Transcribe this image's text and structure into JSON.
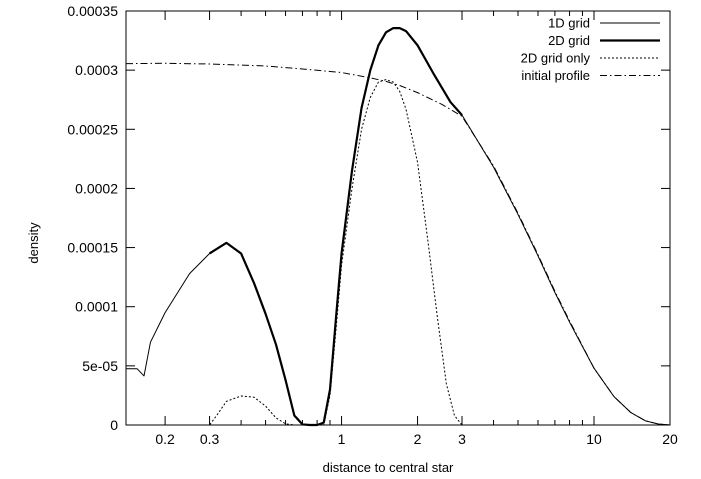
{
  "chart_data": {
    "type": "line",
    "xlabel": "distance to central star",
    "ylabel": "density",
    "xscale": "log",
    "xlim": [
      0.14,
      20
    ],
    "ylim": [
      0,
      0.00035
    ],
    "grid": false,
    "legend_position": "top-right",
    "x_ticks": [
      {
        "value": 0.2,
        "label": "0.2"
      },
      {
        "value": 0.3,
        "label": "0.3"
      },
      {
        "value": 1,
        "label": "1"
      },
      {
        "value": 2,
        "label": "2"
      },
      {
        "value": 3,
        "label": "3"
      },
      {
        "value": 10,
        "label": "10"
      },
      {
        "value": 20,
        "label": "20"
      }
    ],
    "x_minor_ticks": [
      0.4,
      0.5,
      0.6,
      0.7,
      0.8,
      0.9,
      4,
      5,
      6,
      7,
      8,
      9
    ],
    "y_ticks": [
      {
        "value": 0,
        "label": "0"
      },
      {
        "value": 5e-05,
        "label": "5e-05"
      },
      {
        "value": 0.0001,
        "label": "0.0001"
      },
      {
        "value": 0.00015,
        "label": "0.00015"
      },
      {
        "value": 0.0002,
        "label": "0.0002"
      },
      {
        "value": 0.00025,
        "label": "0.00025"
      },
      {
        "value": 0.0003,
        "label": "0.0003"
      },
      {
        "value": 0.00035,
        "label": "0.00035"
      }
    ],
    "series": [
      {
        "name": "1D grid",
        "style": "solid-thin",
        "color": "#000000",
        "points": [
          [
            0.14,
            4.75e-05
          ],
          [
            0.155,
            4.75e-05
          ],
          [
            0.165,
            4.15e-05
          ],
          [
            0.175,
            7e-05
          ],
          [
            0.2,
            9.5e-05
          ],
          [
            0.25,
            0.000128
          ],
          [
            0.3,
            0.000145
          ],
          [
            0.35,
            0.000154
          ],
          [
            0.4,
            0.000145
          ],
          [
            0.45,
            0.00012
          ],
          [
            0.5,
            9.4e-05
          ],
          [
            0.55,
            6.8e-05
          ],
          [
            0.6,
            3.8e-05
          ],
          [
            0.65,
            8e-06
          ],
          [
            0.7,
            5e-07
          ],
          [
            0.75,
            0
          ],
          [
            0.8,
            0
          ],
          [
            0.85,
            2e-06
          ],
          [
            0.9,
            3e-05
          ],
          [
            0.95,
            9e-05
          ],
          [
            1,
            0.000145
          ],
          [
            1.1,
            0.000215
          ],
          [
            1.2,
            0.000268
          ],
          [
            1.3,
            0.0003
          ],
          [
            1.4,
            0.000321
          ],
          [
            1.5,
            0.000332
          ],
          [
            1.6,
            0.0003355
          ],
          [
            1.7,
            0.0003355
          ],
          [
            1.8,
            0.000333
          ],
          [
            2,
            0.000321
          ],
          [
            2.3,
            0.000298
          ],
          [
            2.7,
            0.000273
          ],
          [
            3,
            0.000262
          ],
          [
            4,
            0.000218
          ],
          [
            5,
            0.000178
          ],
          [
            6,
            0.000143
          ],
          [
            7,
            0.000112
          ],
          [
            8,
            8.7e-05
          ],
          [
            10,
            4.8e-05
          ],
          [
            12,
            2.4e-05
          ],
          [
            14,
            1.05e-05
          ],
          [
            16,
            3.5e-06
          ],
          [
            18,
            8e-07
          ],
          [
            20,
            0
          ]
        ]
      },
      {
        "name": "2D grid",
        "style": "solid-thick",
        "color": "#000000",
        "points": [
          [
            0.3,
            0.000145
          ],
          [
            0.35,
            0.000154
          ],
          [
            0.4,
            0.000145
          ],
          [
            0.45,
            0.00012
          ],
          [
            0.5,
            9.4e-05
          ],
          [
            0.55,
            6.8e-05
          ],
          [
            0.6,
            3.8e-05
          ],
          [
            0.65,
            8e-06
          ],
          [
            0.7,
            5e-07
          ],
          [
            0.75,
            0
          ],
          [
            0.8,
            0
          ],
          [
            0.85,
            2e-06
          ],
          [
            0.9,
            3e-05
          ],
          [
            0.95,
            9e-05
          ],
          [
            1,
            0.000145
          ],
          [
            1.1,
            0.000215
          ],
          [
            1.2,
            0.000268
          ],
          [
            1.3,
            0.0003
          ],
          [
            1.4,
            0.000321
          ],
          [
            1.5,
            0.000332
          ],
          [
            1.6,
            0.0003355
          ],
          [
            1.7,
            0.0003355
          ],
          [
            1.8,
            0.000333
          ],
          [
            2,
            0.000321
          ],
          [
            2.3,
            0.000298
          ],
          [
            2.7,
            0.000273
          ],
          [
            3,
            0.000262
          ]
        ]
      },
      {
        "name": "2D grid only",
        "style": "dotted",
        "color": "#000000",
        "points": [
          [
            0.14,
            0
          ],
          [
            0.3,
            0
          ],
          [
            0.32,
            8e-06
          ],
          [
            0.35,
            2e-05
          ],
          [
            0.4,
            2.45e-05
          ],
          [
            0.45,
            2.35e-05
          ],
          [
            0.5,
            1.6e-05
          ],
          [
            0.55,
            6e-06
          ],
          [
            0.6,
            1e-06
          ],
          [
            0.65,
            0
          ],
          [
            0.85,
            0
          ],
          [
            0.9,
            2.5e-05
          ],
          [
            0.95,
            8e-05
          ],
          [
            1,
            0.000135
          ],
          [
            1.1,
            0.0002
          ],
          [
            1.2,
            0.00025
          ],
          [
            1.3,
            0.000277
          ],
          [
            1.4,
            0.00029
          ],
          [
            1.5,
            0.000292
          ],
          [
            1.6,
            0.00029
          ],
          [
            1.7,
            0.000282
          ],
          [
            1.8,
            0.000267
          ],
          [
            2,
            0.000222
          ],
          [
            2.2,
            0.000155
          ],
          [
            2.4,
            9e-05
          ],
          [
            2.6,
            3.5e-05
          ],
          [
            2.8,
            8e-06
          ],
          [
            3,
            0
          ],
          [
            20,
            0
          ]
        ]
      },
      {
        "name": "initial profile",
        "style": "dash-dot",
        "color": "#000000",
        "points": [
          [
            0.14,
            0.0003055
          ],
          [
            0.2,
            0.0003058
          ],
          [
            0.3,
            0.0003052
          ],
          [
            0.5,
            0.0003035
          ],
          [
            0.7,
            0.000301
          ],
          [
            1,
            0.000298
          ],
          [
            1.3,
            0.0002935
          ],
          [
            1.5,
            0.0002905
          ],
          [
            1.7,
            0.000287
          ],
          [
            2,
            0.000281
          ],
          [
            2.5,
            0.000271
          ],
          [
            3,
            0.000261
          ],
          [
            4,
            0.000219
          ],
          [
            5,
            0.000179
          ],
          [
            6,
            0.000144
          ],
          [
            7,
            0.000113
          ],
          [
            8,
            8.8e-05
          ],
          [
            10,
            4.8e-05
          ],
          [
            12,
            2.4e-05
          ],
          [
            14,
            1.05e-05
          ],
          [
            16,
            3.5e-06
          ],
          [
            18,
            8e-07
          ],
          [
            20,
            0
          ]
        ]
      }
    ]
  }
}
